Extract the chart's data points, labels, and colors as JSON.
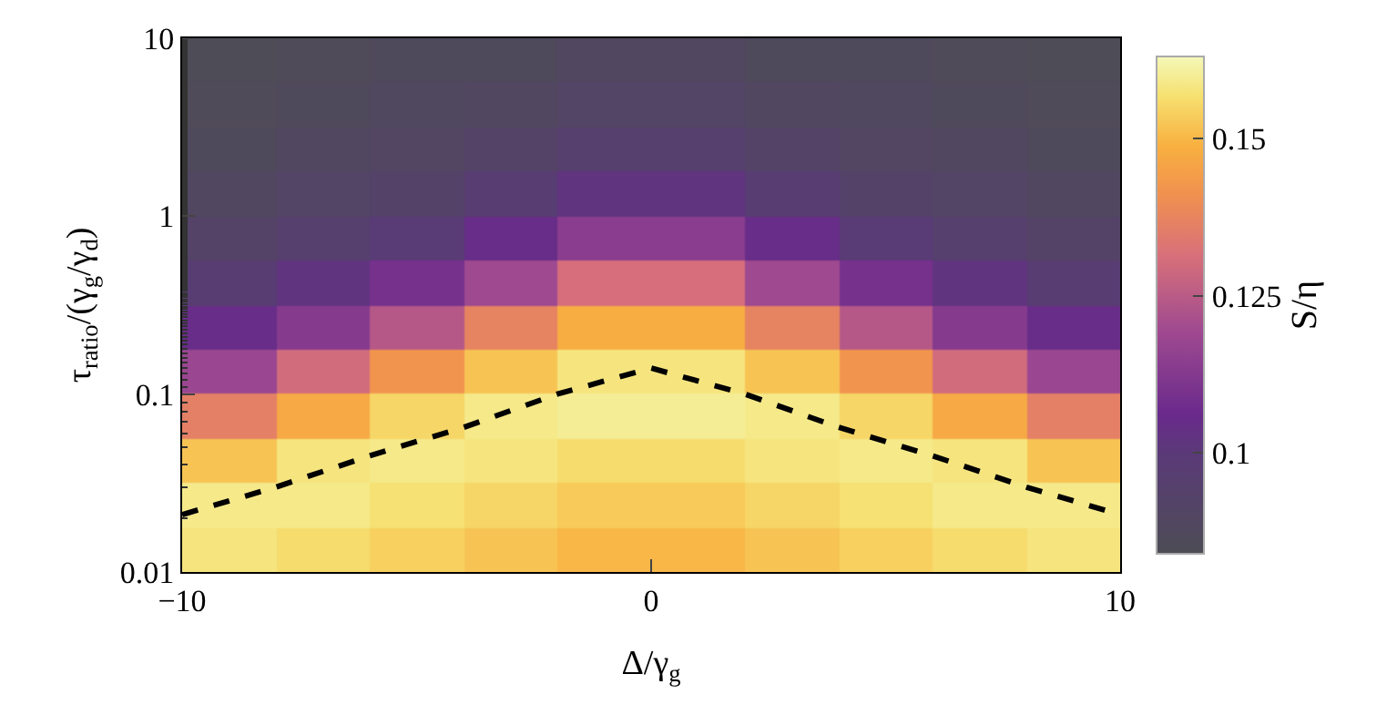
{
  "chart_data": {
    "type": "heatmap",
    "xlabel": "Δ/γ$_{g}$",
    "ylabel": "τ$_{ratio}$/(γ$_{g}$/γ$_{d}$)",
    "clabel": "S/η",
    "log": "y",
    "x": [
      -9,
      -7,
      -5,
      -3,
      -1,
      1,
      3,
      5,
      7,
      9
    ],
    "y": [
      7.5,
      4.22,
      2.37,
      1.33,
      0.75,
      0.422,
      0.237,
      0.133,
      0.075,
      0.0422,
      0.0237,
      0.0133
    ],
    "cells": [
      [
        0.085,
        0.086,
        0.087,
        0.087,
        0.089,
        0.089,
        0.087,
        0.087,
        0.086,
        0.085
      ],
      [
        0.086,
        0.087,
        0.088,
        0.089,
        0.091,
        0.091,
        0.089,
        0.088,
        0.087,
        0.086
      ],
      [
        0.087,
        0.089,
        0.09,
        0.092,
        0.095,
        0.095,
        0.092,
        0.09,
        0.089,
        0.087
      ],
      [
        0.089,
        0.091,
        0.093,
        0.097,
        0.102,
        0.102,
        0.097,
        0.093,
        0.091,
        0.089
      ],
      [
        0.092,
        0.095,
        0.099,
        0.105,
        0.114,
        0.114,
        0.105,
        0.099,
        0.095,
        0.092
      ],
      [
        0.097,
        0.102,
        0.109,
        0.119,
        0.131,
        0.131,
        0.119,
        0.109,
        0.102,
        0.097
      ],
      [
        0.105,
        0.113,
        0.124,
        0.137,
        0.148,
        0.148,
        0.137,
        0.124,
        0.113,
        0.105
      ],
      [
        0.118,
        0.13,
        0.142,
        0.152,
        0.158,
        0.158,
        0.152,
        0.142,
        0.13,
        0.118
      ],
      [
        0.136,
        0.147,
        0.155,
        0.159,
        0.16,
        0.16,
        0.159,
        0.155,
        0.147,
        0.136
      ],
      [
        0.152,
        0.158,
        0.159,
        0.158,
        0.156,
        0.156,
        0.158,
        0.159,
        0.158,
        0.152
      ],
      [
        0.159,
        0.159,
        0.157,
        0.155,
        0.153,
        0.153,
        0.155,
        0.157,
        0.159,
        0.159
      ],
      [
        0.158,
        0.156,
        0.154,
        0.152,
        0.15,
        0.15,
        0.152,
        0.154,
        0.156,
        0.158
      ]
    ],
    "series": [
      {
        "type": "line",
        "color": "#000000",
        "line_style": "dashed",
        "x": [
          -10,
          -8,
          -6,
          -4,
          -2,
          0,
          2,
          4,
          6,
          8,
          10
        ],
        "values": [
          0.021,
          0.03,
          0.045,
          0.065,
          0.1,
          0.14,
          0.1,
          0.065,
          0.045,
          0.03,
          0.021
        ]
      }
    ],
    "xlim": [
      -10,
      10
    ],
    "xticks": [
      {
        "value": -10,
        "label": "−10"
      },
      0,
      10
    ],
    "ylim": [
      0.01,
      10
    ],
    "yticks": [
      0.01,
      0.1,
      1,
      10
    ],
    "clim": [
      0.084,
      0.163
    ],
    "cticks": [
      0.1,
      0.125,
      0.15
    ]
  }
}
